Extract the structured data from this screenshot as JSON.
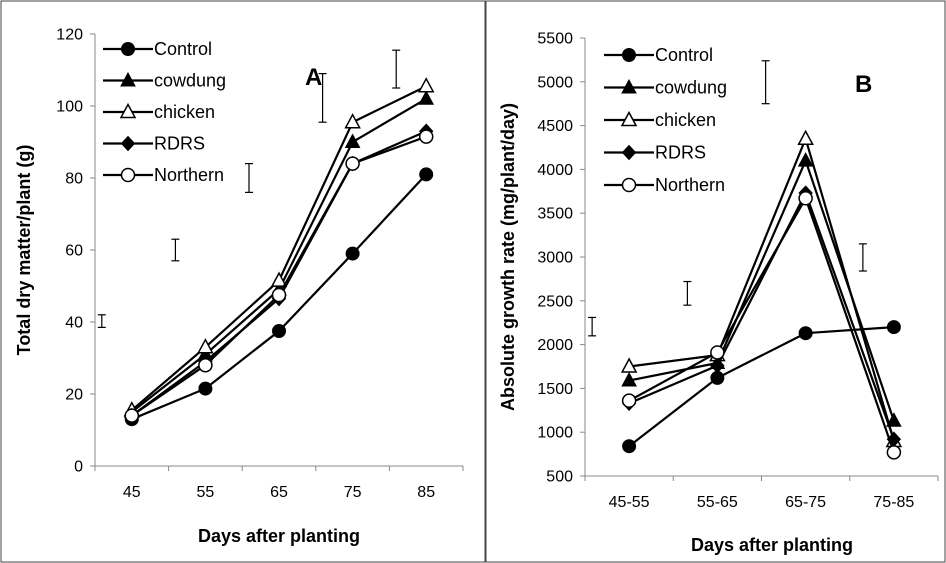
{
  "chart_data": [
    {
      "type": "line",
      "panel_label": "A",
      "xlabel": "Days after planting",
      "ylabel": "Total dry matter/plant (g)",
      "categories": [
        "45",
        "55",
        "65",
        "75",
        "85"
      ],
      "ylim": [
        0,
        120
      ],
      "yticks": [
        "0",
        "20",
        "40",
        "60",
        "80",
        "100",
        "120"
      ],
      "legend_position": "top-left",
      "grid": false,
      "series": [
        {
          "name": "Control",
          "marker": "filled-circle",
          "values": [
            13,
            21.5,
            37.5,
            59,
            81
          ]
        },
        {
          "name": "cowdung",
          "marker": "filled-triangle",
          "values": [
            15,
            31,
            49,
            90,
            102
          ]
        },
        {
          "name": "chicken",
          "marker": "open-triangle",
          "values": [
            15.5,
            33,
            51.5,
            95.5,
            105.5
          ]
        },
        {
          "name": "RDRS",
          "marker": "filled-diamond",
          "values": [
            14,
            29,
            46.5,
            84,
            93
          ]
        },
        {
          "name": "Northern",
          "marker": "open-circle",
          "values": [
            14,
            28,
            47.5,
            84,
            91.5
          ]
        }
      ],
      "error_bars": [
        {
          "category": "45",
          "low": 38.5,
          "high": 42
        },
        {
          "category": "55",
          "low": 57,
          "high": 63
        },
        {
          "category": "65",
          "low": 76,
          "high": 84
        },
        {
          "category": "75",
          "low": 95.5,
          "high": 109
        },
        {
          "category": "85",
          "low": 105,
          "high": 115.5
        }
      ]
    },
    {
      "type": "line",
      "panel_label": "B",
      "xlabel": "Days after planting",
      "ylabel": "Absolute growth rate (mg/plant/day)",
      "categories": [
        "45-55",
        "55-65",
        "65-75",
        "75-85"
      ],
      "ylim": [
        500,
        5500
      ],
      "yticks": [
        "500",
        "1000",
        "1500",
        "2000",
        "2500",
        "3000",
        "3500",
        "4000",
        "4500",
        "5000",
        "5500"
      ],
      "legend_position": "top-left",
      "grid": false,
      "series": [
        {
          "name": "Control",
          "marker": "filled-circle",
          "values": [
            840,
            1620,
            2130,
            2200
          ]
        },
        {
          "name": "cowdung",
          "marker": "filled-triangle",
          "values": [
            1590,
            1790,
            4100,
            1130
          ]
        },
        {
          "name": "chicken",
          "marker": "open-triangle",
          "values": [
            1750,
            1880,
            4350,
            900
          ]
        },
        {
          "name": "RDRS",
          "marker": "filled-diamond",
          "values": [
            1330,
            1760,
            3730,
            920
          ]
        },
        {
          "name": "Northern",
          "marker": "open-circle",
          "values": [
            1360,
            1910,
            3670,
            770
          ]
        }
      ],
      "error_bars": [
        {
          "category": "45-55",
          "low": 2100,
          "high": 2310
        },
        {
          "category": "55-65",
          "low": 2450,
          "high": 2720
        },
        {
          "category": "65-75",
          "low": 4750,
          "high": 5240
        },
        {
          "category": "75-85",
          "low": 2840,
          "high": 3150
        }
      ]
    }
  ]
}
